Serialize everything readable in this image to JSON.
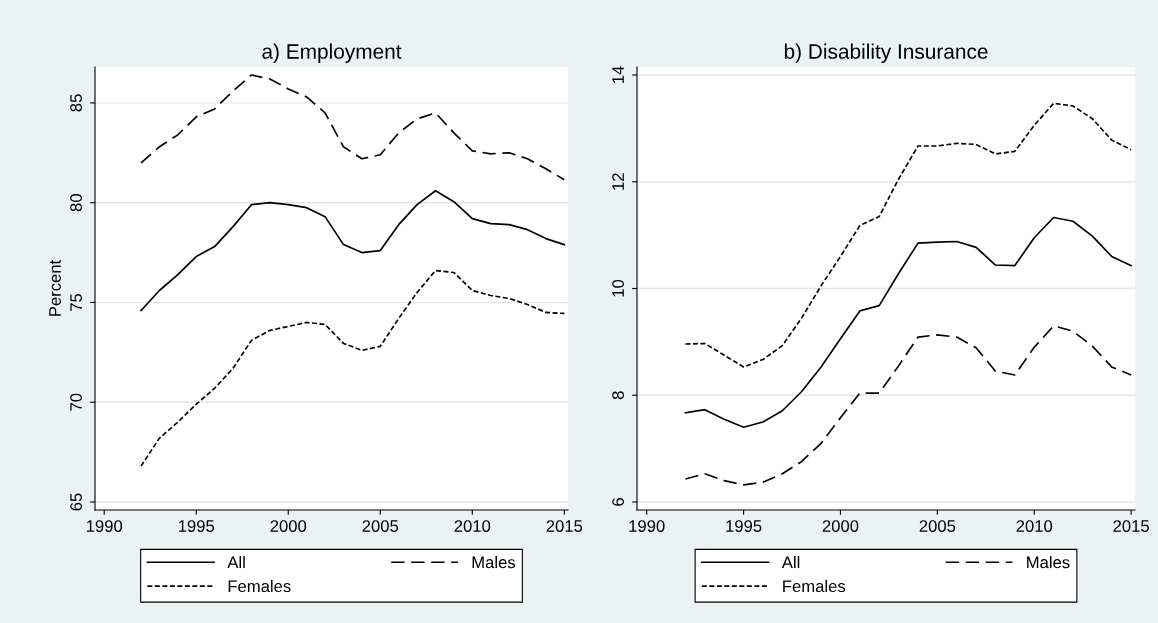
{
  "chart_data": [
    {
      "type": "line",
      "title": "a) Employment",
      "ylabel": "Percent",
      "x": [
        1992,
        1993,
        1994,
        1995,
        1996,
        1997,
        1998,
        1999,
        2000,
        2001,
        2002,
        2003,
        2004,
        2005,
        2006,
        2007,
        2008,
        2009,
        2010,
        2011,
        2012,
        2013,
        2014,
        2015
      ],
      "series": [
        {
          "name": "All",
          "color": "#000000",
          "line_style": "solid",
          "values": [
            74.6,
            75.6,
            76.4,
            77.3,
            77.8,
            78.8,
            79.9,
            80.0,
            79.9,
            79.75,
            79.3,
            77.9,
            77.5,
            77.6,
            78.9,
            79.9,
            80.6,
            80.05,
            79.2,
            78.95,
            78.9,
            78.65,
            78.2,
            77.9
          ]
        },
        {
          "name": "Males",
          "color": "#000000",
          "line_style": "dashed",
          "values": [
            82.0,
            82.8,
            83.4,
            84.3,
            84.7,
            85.6,
            86.4,
            86.2,
            85.7,
            85.3,
            84.5,
            82.8,
            82.2,
            82.4,
            83.5,
            84.2,
            84.5,
            83.5,
            82.6,
            82.45,
            82.5,
            82.2,
            81.7,
            81.15
          ]
        },
        {
          "name": "Females",
          "color": "#000000",
          "line_style": "dotted",
          "values": [
            66.8,
            68.2,
            69.0,
            69.9,
            70.7,
            71.7,
            73.1,
            73.6,
            73.8,
            74.0,
            73.9,
            72.95,
            72.6,
            72.8,
            74.2,
            75.5,
            76.6,
            76.5,
            75.6,
            75.35,
            75.2,
            74.9,
            74.5,
            74.45
          ]
        }
      ],
      "xlim": [
        1989.5,
        2015.2
      ],
      "xticks": [
        1990,
        1995,
        2000,
        2005,
        2010,
        2015
      ],
      "ylim": [
        64.6,
        86.8
      ],
      "yticks": [
        65,
        70,
        75,
        80,
        85
      ],
      "grid": "y",
      "legend": "bottom"
    },
    {
      "type": "line",
      "title": "b) Disability Insurance",
      "x": [
        1992,
        1993,
        1994,
        1995,
        1996,
        1997,
        1998,
        1999,
        2000,
        2001,
        2002,
        2003,
        2004,
        2005,
        2006,
        2007,
        2008,
        2009,
        2010,
        2011,
        2012,
        2013,
        2014,
        2015
      ],
      "series": [
        {
          "name": "All",
          "color": "#000000",
          "line_style": "solid",
          "values": [
            7.67,
            7.73,
            7.55,
            7.4,
            7.5,
            7.71,
            8.07,
            8.53,
            9.06,
            9.58,
            9.68,
            10.28,
            10.85,
            10.87,
            10.88,
            10.77,
            10.44,
            10.43,
            10.95,
            11.33,
            11.26,
            10.98,
            10.6,
            10.43
          ]
        },
        {
          "name": "Males",
          "color": "#000000",
          "line_style": "dashed",
          "values": [
            6.43,
            6.53,
            6.4,
            6.32,
            6.37,
            6.53,
            6.76,
            7.1,
            7.58,
            8.04,
            8.04,
            8.55,
            9.09,
            9.13,
            9.09,
            8.89,
            8.45,
            8.38,
            8.9,
            9.3,
            9.2,
            8.92,
            8.53,
            8.38
          ]
        },
        {
          "name": "Females",
          "color": "#000000",
          "line_style": "dotted",
          "values": [
            8.96,
            8.97,
            8.75,
            8.53,
            8.67,
            8.93,
            9.45,
            10.05,
            10.6,
            11.18,
            11.35,
            12.05,
            12.67,
            12.67,
            12.72,
            12.7,
            12.52,
            12.57,
            13.06,
            13.47,
            13.42,
            13.18,
            12.78,
            12.6
          ]
        }
      ],
      "xlim": [
        1989.5,
        2015.2
      ],
      "xticks": [
        1990,
        1995,
        2000,
        2005,
        2010,
        2015
      ],
      "ylim": [
        5.85,
        14.15
      ],
      "yticks": [
        6,
        8,
        10,
        12,
        14
      ],
      "grid": "y",
      "legend": "bottom"
    }
  ]
}
